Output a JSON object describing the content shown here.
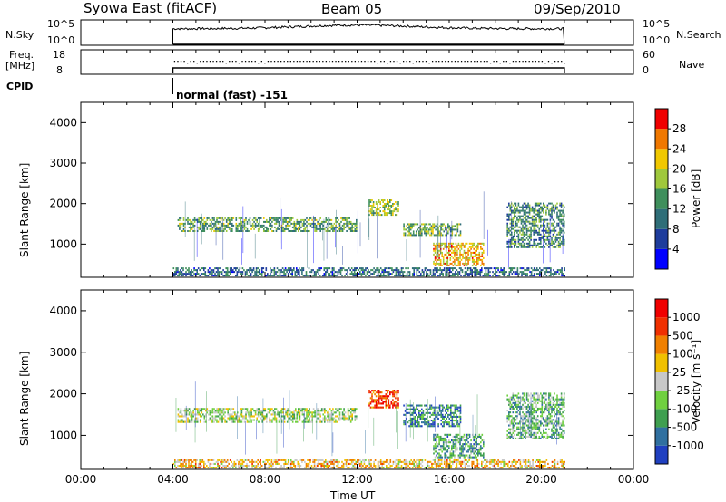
{
  "header": {
    "title": "Syowa East (fitACF)",
    "beam": "Beam 05",
    "date": "09/Sep/2010"
  },
  "top_panels": {
    "nsky_label": "N.Sky",
    "nsky_ticks": [
      "10^5",
      "10^0"
    ],
    "nsearch_label": "N.Search",
    "nsearch_ticks": [
      "10^5",
      "10^0"
    ],
    "freq_label_1": "Freq.",
    "freq_label_2": "[MHz]",
    "freq_ticks": [
      "18",
      "8"
    ],
    "nave_label": "Nave",
    "nave_ticks": [
      "60",
      "0"
    ],
    "cpid_label": "CPID",
    "cpid_value": "normal (fast) -151"
  },
  "chart_data": [
    {
      "type": "heatmap",
      "panel": "power",
      "ylabel": "Slant Range [km]",
      "yticks": [
        "4000",
        "3000",
        "2000",
        "1000"
      ],
      "ylim": [
        180,
        4500
      ],
      "colorbar_label": "Power [dB]",
      "colorbar_ticks": [
        "28",
        "24",
        "20",
        "16",
        "12",
        "8",
        "4"
      ],
      "colorbar_range": [
        0,
        32
      ],
      "colors": [
        "#0000ff",
        "#1e3c9c",
        "#2f6e78",
        "#3f8f5c",
        "#9fc83c",
        "#f0c800",
        "#f07800",
        "#f00000"
      ],
      "echo_regions": [
        {
          "t0": 4.2,
          "t1": 12.0,
          "r0": 1300,
          "r1": 1650,
          "level": 0.45
        },
        {
          "t0": 12.5,
          "t1": 13.8,
          "r0": 1700,
          "r1": 2100,
          "level": 0.55
        },
        {
          "t0": 14.0,
          "t1": 16.5,
          "r0": 1200,
          "r1": 1500,
          "level": 0.5
        },
        {
          "t0": 15.3,
          "t1": 17.5,
          "r0": 450,
          "r1": 1000,
          "level": 0.7
        },
        {
          "t0": 18.5,
          "t1": 21.0,
          "r0": 900,
          "r1": 2000,
          "level": 0.4
        },
        {
          "t0": 4.0,
          "t1": 21.0,
          "r0": 200,
          "r1": 400,
          "level": 0.3
        }
      ]
    },
    {
      "type": "heatmap",
      "panel": "velocity",
      "ylabel": "Slant Range [km]",
      "yticks": [
        "4000",
        "3000",
        "2000",
        "1000"
      ],
      "ylim": [
        180,
        4500
      ],
      "xlabel": "Time UT",
      "xticks": [
        "00:00",
        "04:00",
        "08:00",
        "12:00",
        "16:00",
        "20:00",
        "00:00"
      ],
      "xlim": [
        0,
        24
      ],
      "colorbar_label": "Velocity [m s⁻¹]",
      "colorbar_ticks": [
        "1000",
        "500",
        "100",
        "25",
        "-25",
        "-100",
        "-500",
        "-1000"
      ],
      "colors": [
        "#2040c0",
        "#3070a0",
        "#3f9f50",
        "#70d040",
        "#c8c8c8",
        "#f0c000",
        "#f08000",
        "#f03000",
        "#f00000"
      ],
      "echo_regions": [
        {
          "t0": 4.2,
          "t1": 12.0,
          "r0": 1300,
          "r1": 1650,
          "level": 0.45
        },
        {
          "t0": 12.5,
          "t1": 13.8,
          "r0": 1650,
          "r1": 2100,
          "level": 0.85
        },
        {
          "t0": 14.0,
          "t1": 16.5,
          "r0": 1200,
          "r1": 1700,
          "level": 0.2
        },
        {
          "t0": 15.3,
          "t1": 17.5,
          "r0": 450,
          "r1": 1000,
          "level": 0.3
        },
        {
          "t0": 18.5,
          "t1": 21.0,
          "r0": 900,
          "r1": 2000,
          "level": 0.35
        },
        {
          "t0": 4.0,
          "t1": 21.0,
          "r0": 200,
          "r1": 400,
          "level": 0.6
        }
      ]
    }
  ]
}
